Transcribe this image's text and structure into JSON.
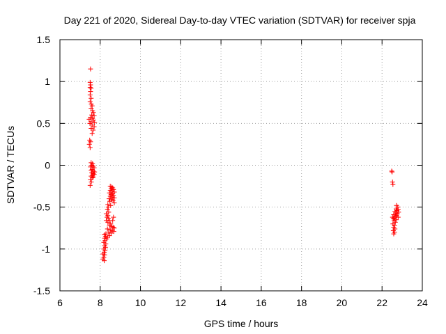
{
  "chart_data": {
    "type": "scatter",
    "title": "Day 221 of 2020, Sidereal Day-to-day VTEC variation (SDTVAR) for receiver spja",
    "xlabel": "GPS time / hours",
    "ylabel": "SDTVAR / TECUs",
    "xlim": [
      6,
      24
    ],
    "ylim": [
      -1.5,
      1.5
    ],
    "xticks": [
      6,
      8,
      10,
      12,
      14,
      16,
      18,
      20,
      22,
      24
    ],
    "yticks": [
      -1.5,
      -1,
      -0.5,
      0,
      0.5,
      1,
      1.5
    ],
    "xtick_labels": [
      "6",
      "8",
      "10",
      "12",
      "14",
      "16",
      "18",
      "20",
      "22",
      "24"
    ],
    "ytick_labels": [
      "-1.5",
      "-1",
      "-0.5",
      "0",
      "0.5",
      "1",
      "1.5"
    ],
    "grid": true,
    "marker": "plus",
    "color": "#ff0000",
    "points": [
      [
        7.52,
        1.15
      ],
      [
        7.5,
        0.99
      ],
      [
        7.52,
        0.96
      ],
      [
        7.5,
        0.93
      ],
      [
        7.55,
        0.92
      ],
      [
        7.52,
        0.88
      ],
      [
        7.5,
        0.84
      ],
      [
        7.55,
        0.8
      ],
      [
        7.5,
        0.76
      ],
      [
        7.56,
        0.73
      ],
      [
        7.6,
        0.71
      ],
      [
        7.55,
        0.68
      ],
      [
        7.62,
        0.65
      ],
      [
        7.66,
        0.63
      ],
      [
        7.58,
        0.6
      ],
      [
        7.7,
        0.59
      ],
      [
        7.52,
        0.57
      ],
      [
        7.62,
        0.56
      ],
      [
        7.45,
        0.55
      ],
      [
        7.67,
        0.54
      ],
      [
        7.55,
        0.52
      ],
      [
        7.72,
        0.51
      ],
      [
        7.49,
        0.5
      ],
      [
        7.6,
        0.48
      ],
      [
        7.7,
        0.46
      ],
      [
        7.55,
        0.44
      ],
      [
        7.65,
        0.42
      ],
      [
        7.6,
        0.38
      ],
      [
        7.48,
        0.3
      ],
      [
        7.52,
        0.28
      ],
      [
        7.46,
        0.25
      ],
      [
        7.5,
        0.21
      ],
      [
        7.55,
        0.03
      ],
      [
        7.62,
        0.02
      ],
      [
        7.58,
        0.0
      ],
      [
        7.66,
        -0.01
      ],
      [
        7.52,
        -0.02
      ],
      [
        7.7,
        -0.03
      ],
      [
        7.6,
        -0.05
      ],
      [
        7.55,
        -0.06
      ],
      [
        7.66,
        -0.07
      ],
      [
        7.72,
        -0.08
      ],
      [
        7.58,
        -0.09
      ],
      [
        7.65,
        -0.1
      ],
      [
        7.7,
        -0.11
      ],
      [
        7.62,
        -0.12
      ],
      [
        7.55,
        -0.13
      ],
      [
        7.66,
        -0.14
      ],
      [
        7.6,
        -0.15
      ],
      [
        7.52,
        -0.17
      ],
      [
        7.56,
        -0.2
      ],
      [
        7.5,
        -0.24
      ],
      [
        8.5,
        -0.25
      ],
      [
        8.58,
        -0.26
      ],
      [
        8.62,
        -0.27
      ],
      [
        8.54,
        -0.28
      ],
      [
        8.66,
        -0.29
      ],
      [
        8.5,
        -0.3
      ],
      [
        8.58,
        -0.31
      ],
      [
        8.7,
        -0.32
      ],
      [
        8.46,
        -0.33
      ],
      [
        8.62,
        -0.34
      ],
      [
        8.54,
        -0.35
      ],
      [
        8.66,
        -0.36
      ],
      [
        8.5,
        -0.37
      ],
      [
        8.6,
        -0.38
      ],
      [
        8.7,
        -0.39
      ],
      [
        8.44,
        -0.4
      ],
      [
        8.56,
        -0.41
      ],
      [
        8.64,
        -0.42
      ],
      [
        8.48,
        -0.43
      ],
      [
        8.7,
        -0.45
      ],
      [
        8.38,
        -0.47
      ],
      [
        8.52,
        -0.48
      ],
      [
        8.4,
        -0.5
      ],
      [
        8.36,
        -0.53
      ],
      [
        8.42,
        -0.56
      ],
      [
        8.3,
        -0.58
      ],
      [
        8.38,
        -0.6
      ],
      [
        8.34,
        -0.62
      ],
      [
        8.42,
        -0.64
      ],
      [
        8.46,
        -0.66
      ],
      [
        8.3,
        -0.66
      ],
      [
        8.38,
        -0.68
      ],
      [
        8.52,
        -0.7
      ],
      [
        8.46,
        -0.72
      ],
      [
        8.58,
        -0.73
      ],
      [
        8.64,
        -0.74
      ],
      [
        8.7,
        -0.75
      ],
      [
        8.36,
        -0.76
      ],
      [
        8.5,
        -0.77
      ],
      [
        8.6,
        -0.78
      ],
      [
        8.68,
        -0.79
      ],
      [
        8.42,
        -0.8
      ],
      [
        8.54,
        -0.81
      ],
      [
        8.28,
        -0.82
      ],
      [
        8.2,
        -0.83
      ],
      [
        8.46,
        -0.84
      ],
      [
        8.26,
        -0.85
      ],
      [
        8.36,
        -0.86
      ],
      [
        8.22,
        -0.87
      ],
      [
        8.32,
        -0.88
      ],
      [
        8.24,
        -0.9
      ],
      [
        8.18,
        -0.92
      ],
      [
        8.28,
        -0.94
      ],
      [
        8.22,
        -0.96
      ],
      [
        8.26,
        -0.98
      ],
      [
        8.18,
        -1.0
      ],
      [
        8.24,
        -1.02
      ],
      [
        8.2,
        -1.04
      ],
      [
        8.14,
        -1.06
      ],
      [
        8.22,
        -1.07
      ],
      [
        8.18,
        -1.1
      ],
      [
        8.14,
        -1.12
      ],
      [
        8.2,
        -1.14
      ],
      [
        8.66,
        -0.62
      ],
      [
        8.62,
        -0.66
      ],
      [
        22.48,
        -0.07
      ],
      [
        22.5,
        -0.08
      ],
      [
        22.52,
        -0.2
      ],
      [
        22.54,
        -0.23
      ],
      [
        22.72,
        -0.48
      ],
      [
        22.78,
        -0.5
      ],
      [
        22.7,
        -0.52
      ],
      [
        22.8,
        -0.53
      ],
      [
        22.74,
        -0.54
      ],
      [
        22.64,
        -0.55
      ],
      [
        22.82,
        -0.56
      ],
      [
        22.68,
        -0.57
      ],
      [
        22.76,
        -0.58
      ],
      [
        22.58,
        -0.59
      ],
      [
        22.72,
        -0.6
      ],
      [
        22.66,
        -0.61
      ],
      [
        22.8,
        -0.62
      ],
      [
        22.52,
        -0.62
      ],
      [
        22.62,
        -0.63
      ],
      [
        22.56,
        -0.64
      ],
      [
        22.7,
        -0.65
      ],
      [
        22.6,
        -0.66
      ],
      [
        22.66,
        -0.68
      ],
      [
        22.54,
        -0.7
      ],
      [
        22.62,
        -0.72
      ],
      [
        22.58,
        -0.74
      ],
      [
        22.64,
        -0.76
      ],
      [
        22.56,
        -0.78
      ],
      [
        22.62,
        -0.8
      ],
      [
        22.58,
        -0.82
      ]
    ]
  }
}
